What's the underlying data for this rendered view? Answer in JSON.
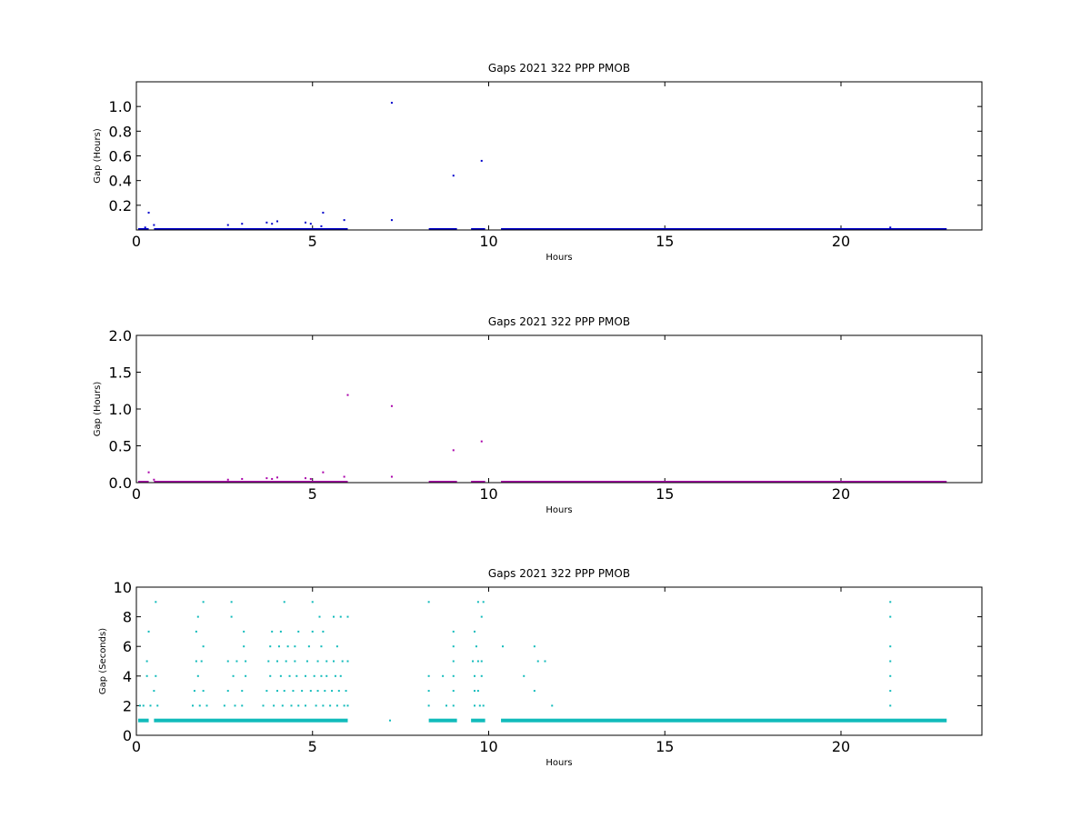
{
  "chart_data": [
    {
      "type": "scatter",
      "title": "Gaps 2021 322 PPP  PMOB",
      "xlabel": "Hours",
      "ylabel": "Gap (Hours)",
      "xlim": [
        0,
        24
      ],
      "ylim": [
        0,
        1.2
      ],
      "xticks": [
        "0",
        "5",
        "10",
        "15",
        "20"
      ],
      "xtick_values": [
        0,
        5,
        10,
        15,
        20
      ],
      "yticks": [
        "0.2",
        "0.4",
        "0.6",
        "0.8",
        "1.0"
      ],
      "ytick_values": [
        0.2,
        0.4,
        0.6,
        0.8,
        1.0
      ],
      "color": "#0000cc",
      "baseline": {
        "y": 0.0,
        "segments": [
          [
            0.05,
            0.35
          ],
          [
            0.5,
            6.0
          ],
          [
            8.3,
            9.1
          ],
          [
            9.5,
            9.9
          ],
          [
            10.35,
            23.0
          ]
        ]
      },
      "points": [
        {
          "x": 0.35,
          "y": 0.14
        },
        {
          "x": 0.5,
          "y": 0.04
        },
        {
          "x": 0.25,
          "y": 0.02
        },
        {
          "x": 2.6,
          "y": 0.04
        },
        {
          "x": 3.0,
          "y": 0.05
        },
        {
          "x": 3.7,
          "y": 0.06
        },
        {
          "x": 3.85,
          "y": 0.05
        },
        {
          "x": 4.0,
          "y": 0.07
        },
        {
          "x": 4.8,
          "y": 0.06
        },
        {
          "x": 4.95,
          "y": 0.05
        },
        {
          "x": 5.3,
          "y": 0.14
        },
        {
          "x": 5.9,
          "y": 0.08
        },
        {
          "x": 5.25,
          "y": 0.03
        },
        {
          "x": 7.25,
          "y": 0.08
        },
        {
          "x": 7.25,
          "y": 1.03
        },
        {
          "x": 9.0,
          "y": 0.44
        },
        {
          "x": 9.8,
          "y": 0.56
        },
        {
          "x": 21.4,
          "y": 0.02
        }
      ]
    },
    {
      "type": "scatter",
      "title": "Gaps 2021 322 PPP  PMOB",
      "xlabel": "Hours",
      "ylabel": "Gap (Hours)",
      "xlim": [
        0,
        24
      ],
      "ylim": [
        0,
        2.0
      ],
      "xticks": [
        "0",
        "5",
        "10",
        "15",
        "20"
      ],
      "xtick_values": [
        0,
        5,
        10,
        15,
        20
      ],
      "yticks": [
        "0.0",
        "0.5",
        "1.0",
        "1.5",
        "2.0"
      ],
      "ytick_values": [
        0.0,
        0.5,
        1.0,
        1.5,
        2.0
      ],
      "color": "#aa00aa",
      "baseline": {
        "y": 0.0,
        "segments": [
          [
            0.05,
            0.35
          ],
          [
            0.5,
            6.0
          ],
          [
            8.3,
            9.1
          ],
          [
            9.5,
            9.9
          ],
          [
            10.35,
            23.0
          ]
        ]
      },
      "points": [
        {
          "x": 0.35,
          "y": 0.14
        },
        {
          "x": 0.5,
          "y": 0.04
        },
        {
          "x": 2.6,
          "y": 0.04
        },
        {
          "x": 3.0,
          "y": 0.05
        },
        {
          "x": 3.7,
          "y": 0.06
        },
        {
          "x": 3.85,
          "y": 0.05
        },
        {
          "x": 4.0,
          "y": 0.07
        },
        {
          "x": 4.8,
          "y": 0.06
        },
        {
          "x": 4.95,
          "y": 0.05
        },
        {
          "x": 5.3,
          "y": 0.14
        },
        {
          "x": 5.9,
          "y": 0.08
        },
        {
          "x": 6.0,
          "y": 1.19
        },
        {
          "x": 7.25,
          "y": 0.08
        },
        {
          "x": 7.25,
          "y": 1.04
        },
        {
          "x": 9.0,
          "y": 0.44
        },
        {
          "x": 9.8,
          "y": 0.56
        }
      ]
    },
    {
      "type": "scatter",
      "title": "Gaps 2021 322 PPP  PMOB",
      "xlabel": "Hours",
      "ylabel": "Gap (Seconds)",
      "xlim": [
        0,
        24
      ],
      "ylim": [
        0,
        10
      ],
      "xticks": [
        "0",
        "5",
        "10",
        "15",
        "20"
      ],
      "xtick_values": [
        0,
        5,
        10,
        15,
        20
      ],
      "yticks": [
        "0",
        "2",
        "4",
        "6",
        "8",
        "10"
      ],
      "ytick_values": [
        0,
        2,
        4,
        6,
        8,
        10
      ],
      "color": "#11bbbb",
      "baseline": {
        "y": 1.0,
        "segments": [
          [
            0.05,
            0.35
          ],
          [
            0.5,
            6.0
          ],
          [
            8.3,
            9.1
          ],
          [
            9.5,
            9.9
          ],
          [
            10.35,
            23.0
          ]
        ]
      },
      "points": [
        {
          "x": 0.1,
          "y": 2
        },
        {
          "x": 0.2,
          "y": 2
        },
        {
          "x": 0.3,
          "y": 5
        },
        {
          "x": 0.3,
          "y": 4
        },
        {
          "x": 0.35,
          "y": 7
        },
        {
          "x": 0.4,
          "y": 2
        },
        {
          "x": 0.5,
          "y": 3
        },
        {
          "x": 0.55,
          "y": 9
        },
        {
          "x": 0.55,
          "y": 4
        },
        {
          "x": 0.6,
          "y": 2
        },
        {
          "x": 1.6,
          "y": 2
        },
        {
          "x": 1.65,
          "y": 3
        },
        {
          "x": 1.7,
          "y": 5
        },
        {
          "x": 1.7,
          "y": 7
        },
        {
          "x": 1.75,
          "y": 8
        },
        {
          "x": 1.75,
          "y": 4
        },
        {
          "x": 1.8,
          "y": 2
        },
        {
          "x": 1.85,
          "y": 5
        },
        {
          "x": 1.9,
          "y": 3
        },
        {
          "x": 1.9,
          "y": 6
        },
        {
          "x": 1.9,
          "y": 9
        },
        {
          "x": 2.0,
          "y": 2
        },
        {
          "x": 2.5,
          "y": 2
        },
        {
          "x": 2.6,
          "y": 3
        },
        {
          "x": 2.6,
          "y": 5
        },
        {
          "x": 2.7,
          "y": 8
        },
        {
          "x": 2.7,
          "y": 9
        },
        {
          "x": 2.75,
          "y": 4
        },
        {
          "x": 2.8,
          "y": 2
        },
        {
          "x": 2.85,
          "y": 5
        },
        {
          "x": 3.0,
          "y": 2
        },
        {
          "x": 3.0,
          "y": 3
        },
        {
          "x": 3.05,
          "y": 7
        },
        {
          "x": 3.05,
          "y": 6
        },
        {
          "x": 3.1,
          "y": 4
        },
        {
          "x": 3.1,
          "y": 5
        },
        {
          "x": 3.6,
          "y": 2
        },
        {
          "x": 3.7,
          "y": 3
        },
        {
          "x": 3.75,
          "y": 5
        },
        {
          "x": 3.8,
          "y": 6
        },
        {
          "x": 3.8,
          "y": 4
        },
        {
          "x": 3.85,
          "y": 7
        },
        {
          "x": 3.9,
          "y": 2
        },
        {
          "x": 4.0,
          "y": 3
        },
        {
          "x": 4.0,
          "y": 5
        },
        {
          "x": 4.05,
          "y": 6
        },
        {
          "x": 4.1,
          "y": 7
        },
        {
          "x": 4.1,
          "y": 4
        },
        {
          "x": 4.15,
          "y": 2
        },
        {
          "x": 4.2,
          "y": 9
        },
        {
          "x": 4.2,
          "y": 3
        },
        {
          "x": 4.25,
          "y": 5
        },
        {
          "x": 4.3,
          "y": 6
        },
        {
          "x": 4.35,
          "y": 4
        },
        {
          "x": 4.4,
          "y": 2
        },
        {
          "x": 4.45,
          "y": 3
        },
        {
          "x": 4.5,
          "y": 6
        },
        {
          "x": 4.5,
          "y": 5
        },
        {
          "x": 4.55,
          "y": 4
        },
        {
          "x": 4.6,
          "y": 2
        },
        {
          "x": 4.6,
          "y": 7
        },
        {
          "x": 4.7,
          "y": 3
        },
        {
          "x": 4.8,
          "y": 4
        },
        {
          "x": 4.8,
          "y": 2
        },
        {
          "x": 4.85,
          "y": 5
        },
        {
          "x": 4.9,
          "y": 6
        },
        {
          "x": 4.95,
          "y": 3
        },
        {
          "x": 5.0,
          "y": 9
        },
        {
          "x": 5.0,
          "y": 7
        },
        {
          "x": 5.05,
          "y": 4
        },
        {
          "x": 5.1,
          "y": 2
        },
        {
          "x": 5.15,
          "y": 3
        },
        {
          "x": 5.15,
          "y": 5
        },
        {
          "x": 5.2,
          "y": 8
        },
        {
          "x": 5.25,
          "y": 6
        },
        {
          "x": 5.25,
          "y": 4
        },
        {
          "x": 5.3,
          "y": 2
        },
        {
          "x": 5.3,
          "y": 7
        },
        {
          "x": 5.35,
          "y": 3
        },
        {
          "x": 5.4,
          "y": 5
        },
        {
          "x": 5.4,
          "y": 4
        },
        {
          "x": 5.5,
          "y": 2
        },
        {
          "x": 5.55,
          "y": 3
        },
        {
          "x": 5.6,
          "y": 5
        },
        {
          "x": 5.6,
          "y": 8
        },
        {
          "x": 5.65,
          "y": 4
        },
        {
          "x": 5.7,
          "y": 2
        },
        {
          "x": 5.7,
          "y": 6
        },
        {
          "x": 5.75,
          "y": 3
        },
        {
          "x": 5.8,
          "y": 8
        },
        {
          "x": 5.8,
          "y": 4
        },
        {
          "x": 5.85,
          "y": 5
        },
        {
          "x": 5.9,
          "y": 2
        },
        {
          "x": 5.95,
          "y": 3
        },
        {
          "x": 6.0,
          "y": 5
        },
        {
          "x": 6.0,
          "y": 8
        },
        {
          "x": 6.0,
          "y": 2
        },
        {
          "x": 7.2,
          "y": 1
        },
        {
          "x": 8.3,
          "y": 9
        },
        {
          "x": 8.3,
          "y": 4
        },
        {
          "x": 8.3,
          "y": 3
        },
        {
          "x": 8.3,
          "y": 2
        },
        {
          "x": 8.7,
          "y": 4
        },
        {
          "x": 8.8,
          "y": 2
        },
        {
          "x": 9.0,
          "y": 7
        },
        {
          "x": 9.0,
          "y": 6
        },
        {
          "x": 9.0,
          "y": 5
        },
        {
          "x": 9.0,
          "y": 4
        },
        {
          "x": 9.0,
          "y": 3
        },
        {
          "x": 9.0,
          "y": 2
        },
        {
          "x": 9.55,
          "y": 5
        },
        {
          "x": 9.6,
          "y": 7
        },
        {
          "x": 9.6,
          "y": 4
        },
        {
          "x": 9.6,
          "y": 3
        },
        {
          "x": 9.6,
          "y": 2
        },
        {
          "x": 9.65,
          "y": 6
        },
        {
          "x": 9.7,
          "y": 9
        },
        {
          "x": 9.7,
          "y": 5
        },
        {
          "x": 9.7,
          "y": 3
        },
        {
          "x": 9.75,
          "y": 2
        },
        {
          "x": 9.8,
          "y": 8
        },
        {
          "x": 9.8,
          "y": 5
        },
        {
          "x": 9.8,
          "y": 4
        },
        {
          "x": 9.85,
          "y": 9
        },
        {
          "x": 9.85,
          "y": 2
        },
        {
          "x": 10.4,
          "y": 6
        },
        {
          "x": 11.0,
          "y": 4
        },
        {
          "x": 11.3,
          "y": 6
        },
        {
          "x": 11.3,
          "y": 3
        },
        {
          "x": 11.4,
          "y": 5
        },
        {
          "x": 11.6,
          "y": 5
        },
        {
          "x": 11.8,
          "y": 2
        },
        {
          "x": 21.4,
          "y": 9
        },
        {
          "x": 21.4,
          "y": 8
        },
        {
          "x": 21.4,
          "y": 6
        },
        {
          "x": 21.4,
          "y": 5
        },
        {
          "x": 21.4,
          "y": 4
        },
        {
          "x": 21.4,
          "y": 3
        },
        {
          "x": 21.4,
          "y": 2
        }
      ]
    }
  ]
}
